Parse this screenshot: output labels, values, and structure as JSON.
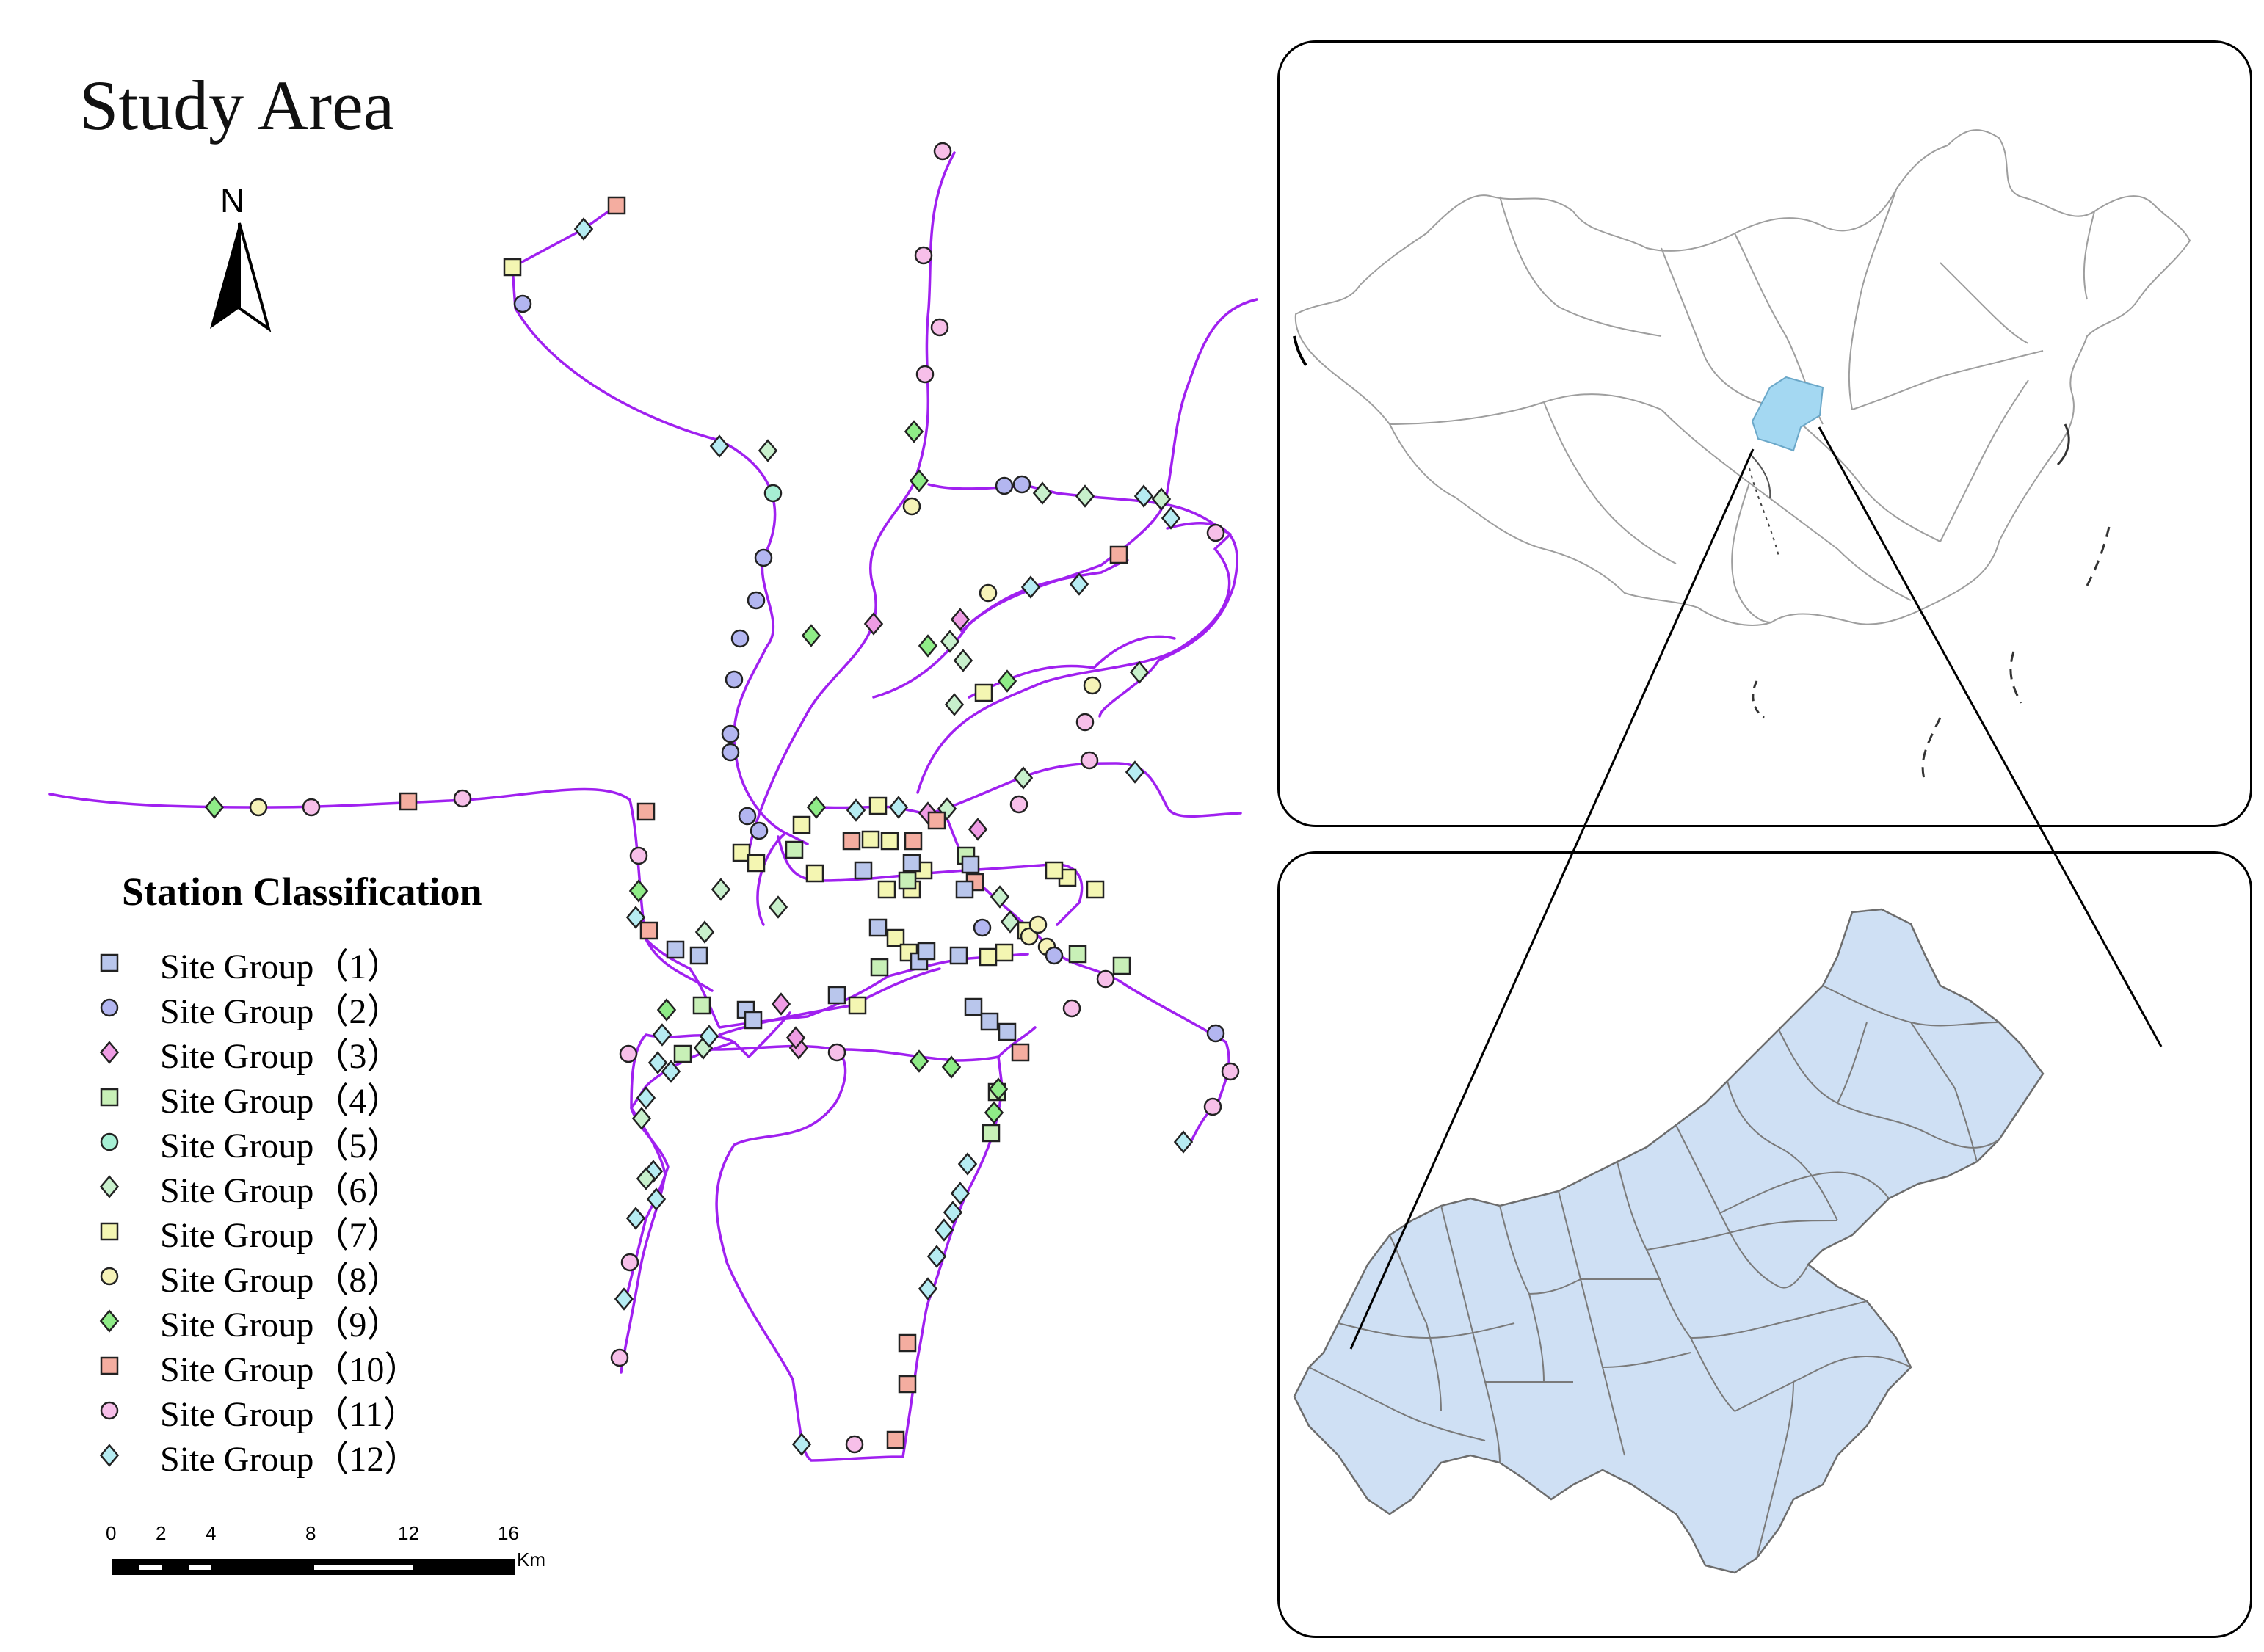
{
  "title": "Study Area",
  "north_arrow": {
    "label": "N"
  },
  "legend": {
    "title": "Station Classification",
    "items": [
      {
        "label": "Site Group（1）",
        "shape": "square",
        "color": "#b9c6ec"
      },
      {
        "label": "Site Group（2）",
        "shape": "circle",
        "color": "#b3b6f0"
      },
      {
        "label": "Site Group（3）",
        "shape": "diamond",
        "color": "#ef9ce4"
      },
      {
        "label": "Site Group（4）",
        "shape": "square",
        "color": "#c8f0b7"
      },
      {
        "label": "Site Group（5）",
        "shape": "circle",
        "color": "#a6efd4"
      },
      {
        "label": "Site Group（6）",
        "shape": "diamond",
        "color": "#c8f0cc"
      },
      {
        "label": "Site Group（7）",
        "shape": "square",
        "color": "#f4f6b2"
      },
      {
        "label": "Site Group（8）",
        "shape": "circle",
        "color": "#f6f3b8"
      },
      {
        "label": "Site Group（9）",
        "shape": "diamond",
        "color": "#8fec87"
      },
      {
        "label": "Site Group（10）",
        "shape": "square",
        "color": "#f4ada0"
      },
      {
        "label": "Site Group（11）",
        "shape": "circle",
        "color": "#f7bfe9"
      },
      {
        "label": "Site Group（12）",
        "shape": "diamond",
        "color": "#b6ecf2"
      }
    ]
  },
  "scale_bar": {
    "ticks": [
      "0",
      "2",
      "4",
      "8",
      "12",
      "16"
    ],
    "unit": "Km"
  },
  "colors": {
    "line": "#a020f0",
    "highlight": "#a4d8f2",
    "region_fill": "#cfe0f4",
    "region_border": "#6d6d6d"
  },
  "inset_top": {
    "description_icon": "china-map-icon"
  },
  "inset_bottom": {
    "description_icon": "region-map-icon"
  }
}
